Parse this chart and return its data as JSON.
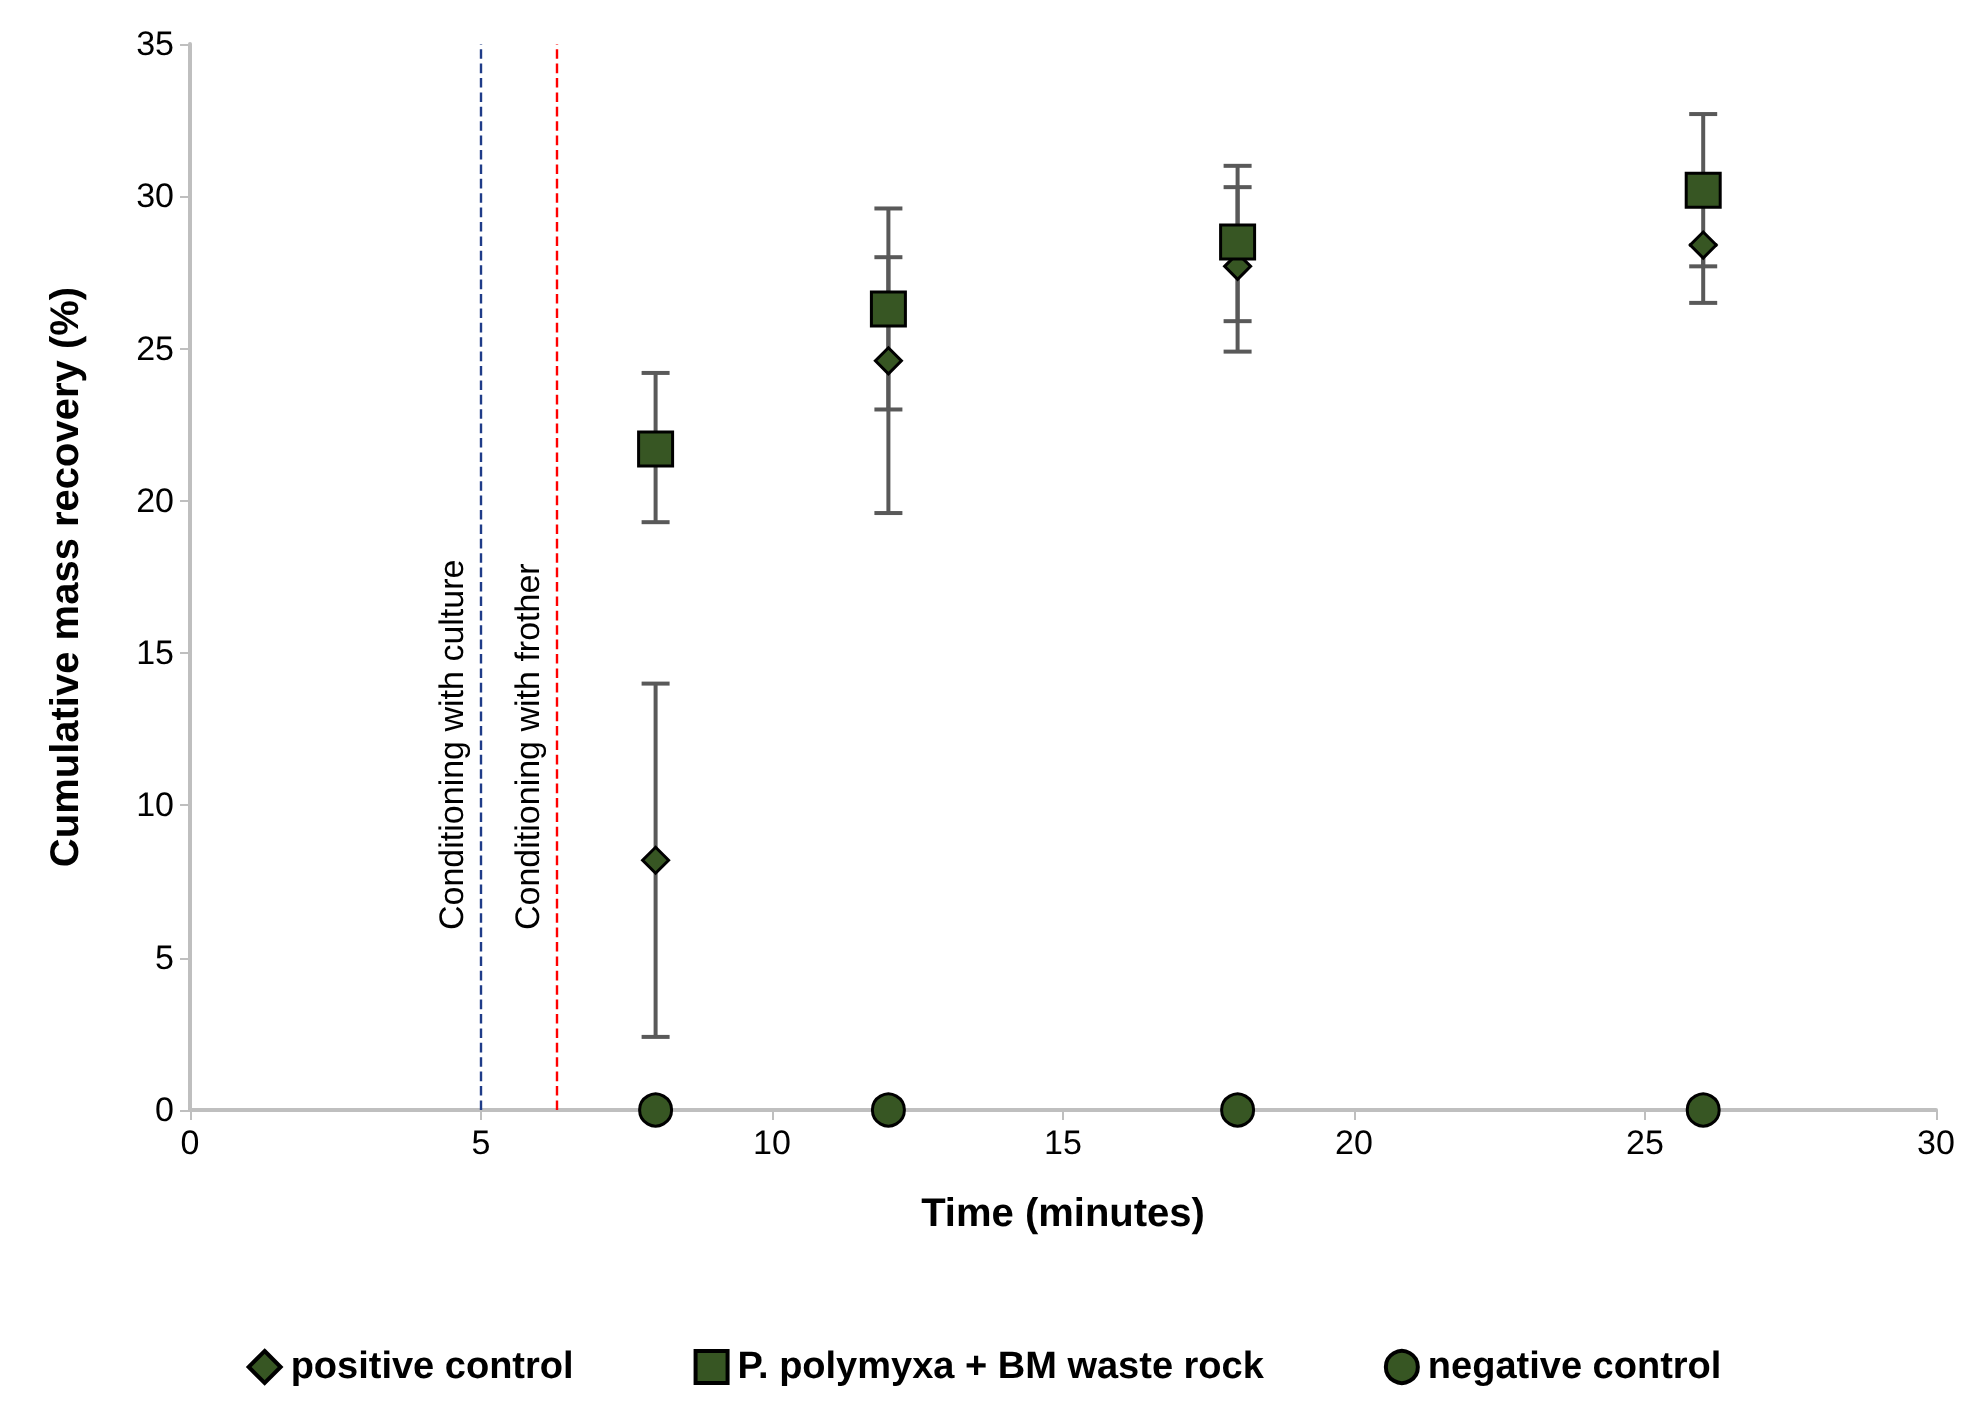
{
  "chart_data": {
    "type": "scatter",
    "xlabel": "Time (minutes)",
    "ylabel": "Cumulative mass recovery (%)",
    "xlim": [
      0,
      30
    ],
    "xticks": [
      0,
      5,
      10,
      15,
      20,
      25,
      30
    ],
    "ylim": [
      0,
      35
    ],
    "yticks": [
      0,
      5,
      10,
      15,
      20,
      25,
      30,
      35
    ],
    "grid": false,
    "legend": "bottom",
    "series": [
      {
        "name": "positive control",
        "color": "#375623",
        "marker": "diamond",
        "x": [
          8,
          12,
          18,
          26
        ],
        "values": [
          8.2,
          24.6,
          27.7,
          28.4
        ],
        "errors": [
          [
            2.4,
            14.0
          ],
          [
            19.6,
            28.0
          ],
          [
            24.9,
            30.3
          ],
          [
            26.5,
            28.4
          ]
        ]
      },
      {
        "name": "P. polymyxa + BM waste rock",
        "color": "#375623",
        "marker": "square",
        "x": [
          8,
          12,
          18,
          26
        ],
        "values": [
          21.7,
          26.3,
          28.5,
          30.2
        ],
        "errors": [
          [
            19.3,
            24.2
          ],
          [
            23.0,
            29.6
          ],
          [
            25.9,
            31.0
          ],
          [
            27.7,
            32.7
          ]
        ]
      },
      {
        "name": "negative control",
        "color": "#375623",
        "marker": "circle",
        "x": [
          8,
          12,
          18,
          26
        ],
        "values": [
          0,
          0,
          0,
          0
        ]
      }
    ],
    "ref_lines": [
      {
        "axis": "x",
        "value": 5,
        "label": "Conditioning with culture",
        "color": "#1f3c88",
        "line_style": "dashed"
      },
      {
        "axis": "x",
        "value": 6.3,
        "label": "Conditioning with frother",
        "color": "#ff0000",
        "line_style": "dashed"
      }
    ]
  }
}
